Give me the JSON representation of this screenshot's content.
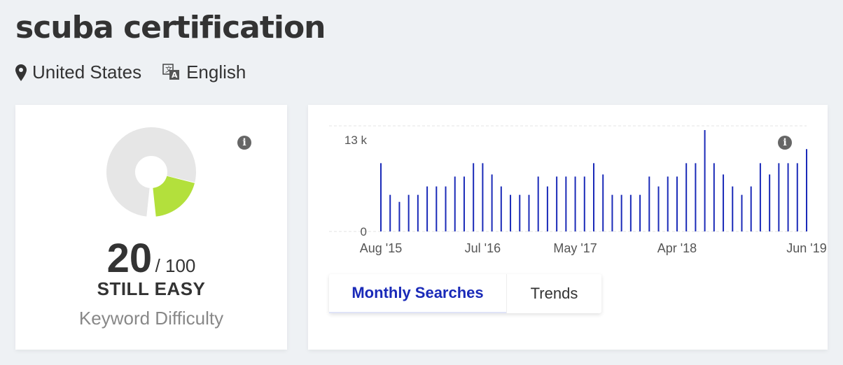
{
  "keyword": "scuba certification",
  "location": "United States",
  "language": "English",
  "icons": {
    "location": "map-pin-icon",
    "language": "translate-icon",
    "info": "info-icon"
  },
  "difficulty": {
    "score": "20",
    "max": "/ 100",
    "level": "STILL EASY",
    "label": "Keyword Difficulty",
    "fraction": 0.2,
    "fill_color": "#b3e03c",
    "track_color": "#e6e6e6"
  },
  "info_glyph": "i",
  "chart_data": {
    "type": "bar",
    "bar_color": "#1a2ab8",
    "ylim": [
      0,
      15
    ],
    "y_ticks": [
      {
        "value": 0,
        "label": "0"
      },
      {
        "value": 13,
        "label": "13 k"
      }
    ],
    "x_ticks": [
      {
        "index": 0,
        "label": "Aug '15"
      },
      {
        "index": 11,
        "label": "Jul '16"
      },
      {
        "index": 21,
        "label": "May '17"
      },
      {
        "index": 32,
        "label": "Apr '18"
      },
      {
        "index": 46,
        "label": "Jun '19"
      }
    ],
    "values": [
      9.7,
      5.2,
      4.2,
      5.2,
      5.2,
      6.4,
      6.4,
      6.4,
      7.8,
      7.8,
      9.7,
      9.7,
      8.1,
      6.4,
      5.2,
      5.2,
      5.2,
      7.8,
      6.4,
      7.8,
      7.8,
      7.8,
      7.8,
      9.7,
      8.1,
      5.2,
      5.2,
      5.2,
      5.2,
      7.8,
      6.4,
      7.8,
      7.8,
      9.7,
      9.7,
      14.4,
      9.7,
      8.1,
      6.4,
      5.2,
      6.4,
      9.7,
      8.1,
      9.7,
      9.7,
      9.7,
      11.7
    ]
  },
  "tabs": [
    {
      "label": "Monthly Searches",
      "active": true
    },
    {
      "label": "Trends",
      "active": false
    }
  ]
}
